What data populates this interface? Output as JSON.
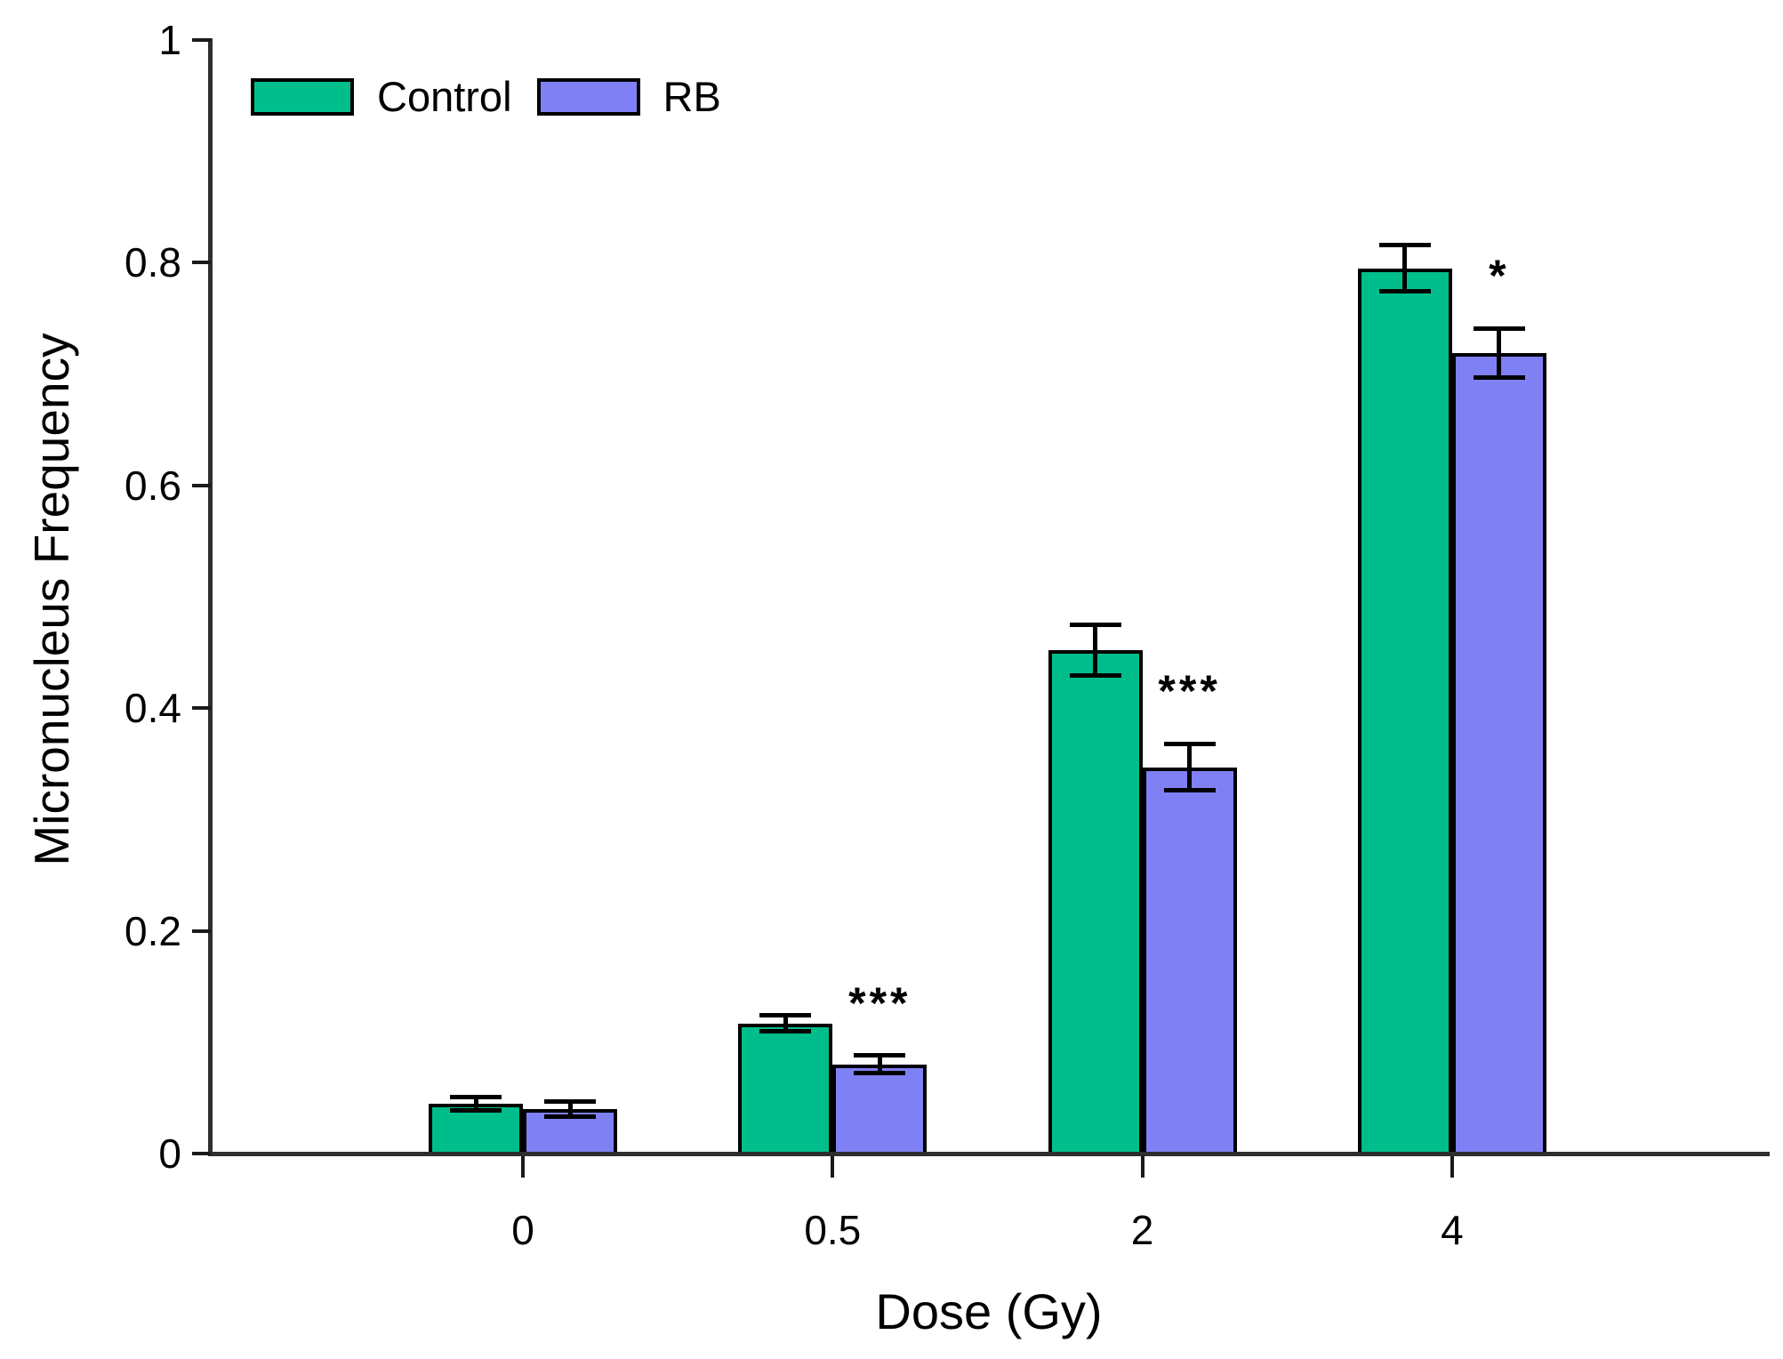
{
  "chart_data": {
    "type": "bar",
    "title": "",
    "xlabel": "Dose (Gy)",
    "ylabel": "Micronucleus Frequency",
    "categories": [
      "0",
      "0.5",
      "2",
      "4"
    ],
    "series": [
      {
        "name": "Control",
        "color": "#00BE8C",
        "values": [
          0.045,
          0.117,
          0.452,
          0.795
        ],
        "errors": [
          0.006,
          0.007,
          0.023,
          0.021
        ]
      },
      {
        "name": "RB",
        "color": "#8080F5",
        "values": [
          0.04,
          0.08,
          0.347,
          0.719
        ],
        "errors": [
          0.007,
          0.008,
          0.021,
          0.022
        ]
      }
    ],
    "significance": [
      {
        "category_index": 1,
        "series": "RB",
        "label": "***"
      },
      {
        "category_index": 2,
        "series": "RB",
        "label": "***"
      },
      {
        "category_index": 3,
        "series": "RB",
        "label": "*"
      }
    ],
    "ylim": [
      0,
      1
    ],
    "yticks": [
      0,
      0.2,
      0.4,
      0.6,
      0.8,
      1
    ],
    "ytick_labels": [
      "0",
      "0.2",
      "0.4",
      "0.6",
      "0.8",
      "1"
    ],
    "legend_position": "top-left",
    "grid": false,
    "error_bars": "symmetric, capped, both directions"
  },
  "colors": {
    "background": "#ffffff",
    "axis": "#2e2e2e",
    "bar_border": "#000000",
    "error_bar": "#000000",
    "text": "#000000",
    "control_fill": "#00BE8C",
    "rb_fill": "#8080F5"
  }
}
